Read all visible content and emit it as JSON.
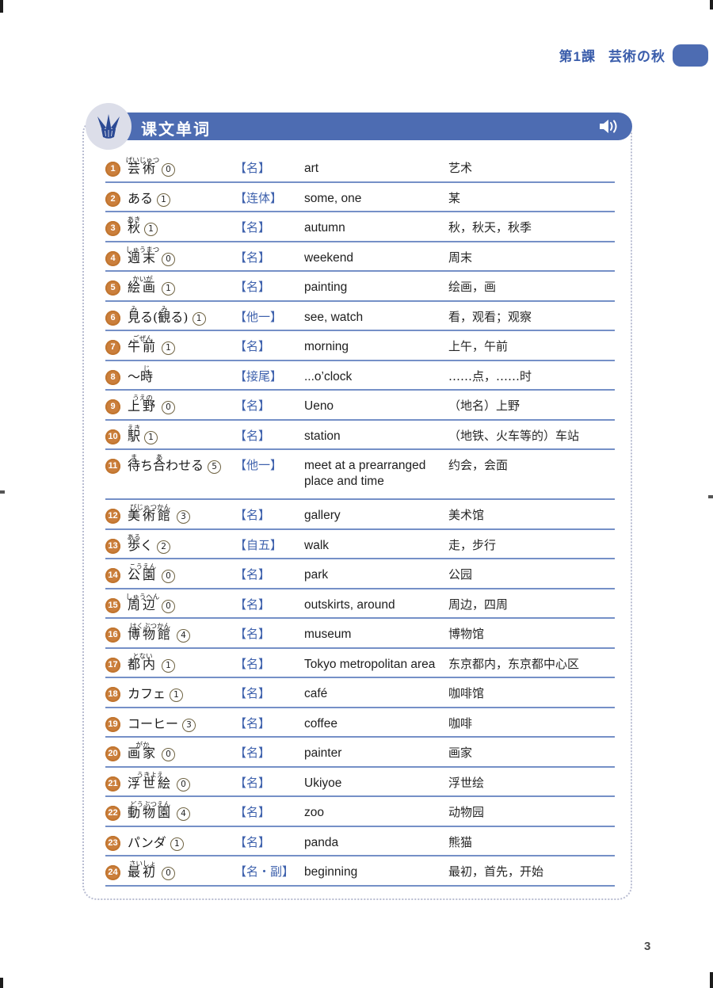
{
  "page": {
    "lesson_label": "第1課",
    "lesson_title": "芸術の秋",
    "page_number": "3"
  },
  "header": {
    "title": "课文单词",
    "crest_icon": "crown-icon",
    "audio_icon": "speaker-icon"
  },
  "colors": {
    "bar_blue": "#4d6cb2",
    "lesson_text_blue": "#3a5dab",
    "row_line_blue": "#7590c7",
    "number_badge_orange": "#cb7f3c",
    "pos_blue": "#3f62ad"
  },
  "vocab": {
    "entries": [
      {
        "num": "1",
        "word": [
          {
            "t": "芸術",
            "r": "げいじゅつ"
          }
        ],
        "accent": "0",
        "pos": "【名】",
        "en": "art",
        "zh": "艺术",
        "tall": false
      },
      {
        "num": "2",
        "word": [
          {
            "t": "ある"
          }
        ],
        "accent": "1",
        "pos": "【连体】",
        "en": "some, one",
        "zh": "某",
        "tall": false
      },
      {
        "num": "3",
        "word": [
          {
            "t": "秋",
            "r": "あき"
          }
        ],
        "accent": "1",
        "pos": "【名】",
        "en": "autumn",
        "zh": "秋，秋天，秋季",
        "tall": false
      },
      {
        "num": "4",
        "word": [
          {
            "t": "週末",
            "r": "しゅうまつ"
          }
        ],
        "accent": "0",
        "pos": "【名】",
        "en": "weekend",
        "zh": "周末",
        "tall": false
      },
      {
        "num": "5",
        "word": [
          {
            "t": "絵画",
            "r": "かいが"
          }
        ],
        "accent": "1",
        "pos": "【名】",
        "en": "painting",
        "zh": "绘画，画",
        "tall": false
      },
      {
        "num": "6",
        "word": [
          {
            "t": "見",
            "r": "み"
          },
          {
            "t": "る("
          },
          {
            "t": "観",
            "r": "み"
          },
          {
            "t": "る) "
          }
        ],
        "accent": "1",
        "pos": "【他一】",
        "en": "see, watch",
        "zh": "看，观看；观察",
        "tall": false
      },
      {
        "num": "7",
        "word": [
          {
            "t": "午前",
            "r": "ごぜん"
          }
        ],
        "accent": "1",
        "pos": "【名】",
        "en": "morning",
        "zh": "上午，午前",
        "tall": false
      },
      {
        "num": "8",
        "word": [
          {
            "t": "～"
          },
          {
            "t": "時",
            "r": "じ"
          }
        ],
        "accent": null,
        "pos": "【接尾】",
        "en": "...o’clock",
        "zh": "……点，……时",
        "tall": false
      },
      {
        "num": "9",
        "word": [
          {
            "t": "上野",
            "r": "うえの"
          }
        ],
        "accent": "0",
        "pos": "【名】",
        "en": "Ueno",
        "zh": "（地名）上野",
        "tall": false
      },
      {
        "num": "10",
        "word": [
          {
            "t": "駅",
            "r": "えき"
          }
        ],
        "accent": "1",
        "pos": "【名】",
        "en": "station",
        "zh": "（地铁、火车等的）车站",
        "tall": false
      },
      {
        "num": "11",
        "word": [
          {
            "t": "待",
            "r": "ま"
          },
          {
            "t": "ち"
          },
          {
            "t": "合",
            "r": "あ"
          },
          {
            "t": "わせる"
          }
        ],
        "accent": "5",
        "pos": "【他一】",
        "en": "meet at a prearranged place and time",
        "zh": "约会，会面",
        "tall": true
      },
      {
        "num": "12",
        "word": [
          {
            "t": "美術館",
            "r": "びじゅつかん"
          }
        ],
        "accent": "3",
        "pos": "【名】",
        "en": "gallery",
        "zh": "美术馆",
        "tall": false
      },
      {
        "num": "13",
        "word": [
          {
            "t": "歩",
            "r": "ある"
          },
          {
            "t": "く"
          }
        ],
        "accent": "2",
        "pos": "【自五】",
        "en": "walk",
        "zh": "走，步行",
        "tall": false
      },
      {
        "num": "14",
        "word": [
          {
            "t": "公園",
            "r": "こうえん"
          }
        ],
        "accent": "0",
        "pos": "【名】",
        "en": "park",
        "zh": "公园",
        "tall": false
      },
      {
        "num": "15",
        "word": [
          {
            "t": "周辺",
            "r": "しゅうへん"
          }
        ],
        "accent": "0",
        "pos": "【名】",
        "en": "outskirts, around",
        "zh": "周边，四周",
        "tall": false
      },
      {
        "num": "16",
        "word": [
          {
            "t": "博物館",
            "r": "はくぶつかん"
          }
        ],
        "accent": "4",
        "pos": "【名】",
        "en": "museum",
        "zh": "博物馆",
        "tall": false
      },
      {
        "num": "17",
        "word": [
          {
            "t": "都内",
            "r": "とない"
          }
        ],
        "accent": "1",
        "pos": "【名】",
        "en": "Tokyo metropolitan area",
        "zh": "东京都内，东京都中心区",
        "tall": false
      },
      {
        "num": "18",
        "word": [
          {
            "t": "カフェ"
          }
        ],
        "accent": "1",
        "pos": "【名】",
        "en": "café",
        "zh": "咖啡馆",
        "tall": false
      },
      {
        "num": "19",
        "word": [
          {
            "t": "コーヒー"
          }
        ],
        "accent": "3",
        "pos": "【名】",
        "en": "coffee",
        "zh": "咖啡",
        "tall": false
      },
      {
        "num": "20",
        "word": [
          {
            "t": "画家",
            "r": "がか"
          }
        ],
        "accent": "0",
        "pos": "【名】",
        "en": "painter",
        "zh": "画家",
        "tall": false
      },
      {
        "num": "21",
        "word": [
          {
            "t": "浮世絵",
            "r": "うきよえ"
          }
        ],
        "accent": "0",
        "pos": "【名】",
        "en": "Ukiyoe",
        "zh": "浮世绘",
        "tall": false
      },
      {
        "num": "22",
        "word": [
          {
            "t": "動物園",
            "r": "どうぶつえん"
          }
        ],
        "accent": "4",
        "pos": "【名】",
        "en": "zoo",
        "zh": "动物园",
        "tall": false
      },
      {
        "num": "23",
        "word": [
          {
            "t": "パンダ"
          }
        ],
        "accent": "1",
        "pos": "【名】",
        "en": "panda",
        "zh": "熊猫",
        "tall": false
      },
      {
        "num": "24",
        "word": [
          {
            "t": "最初",
            "r": "さいしょ"
          }
        ],
        "accent": "0",
        "pos": "【名・副】",
        "en": "beginning",
        "zh": "最初，首先，开始",
        "tall": false
      }
    ]
  }
}
